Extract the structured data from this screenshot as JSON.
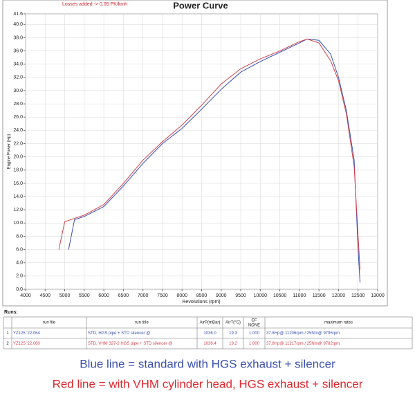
{
  "chart_data": {
    "type": "line",
    "title": "Power Curve",
    "annotation": "Losses added -> 0.05 PK/kmh",
    "xlabel": "Revolutions (rpm)",
    "ylabel": "Engine Power (Hp)",
    "xlim": [
      4000,
      13000
    ],
    "ylim": [
      0,
      41.6
    ],
    "xticks": [
      4000,
      4500,
      5000,
      5500,
      6000,
      6500,
      7000,
      7500,
      8000,
      8500,
      9000,
      9500,
      10000,
      10500,
      11000,
      11500,
      12000,
      12500,
      13000
    ],
    "yticks": [
      {
        "value": 0,
        "label": "0.0"
      },
      {
        "value": 2,
        "label": "2.0"
      },
      {
        "value": 4,
        "label": "4.0"
      },
      {
        "value": 6,
        "label": "6.0"
      },
      {
        "value": 8,
        "label": "8.0"
      },
      {
        "value": 10,
        "label": "10.0"
      },
      {
        "value": 12,
        "label": "12.0"
      },
      {
        "value": 14,
        "label": "14.0"
      },
      {
        "value": 16,
        "label": "16.0"
      },
      {
        "value": 18,
        "label": "18.0"
      },
      {
        "value": 20,
        "label": "20.0"
      },
      {
        "value": 22,
        "label": "22.0"
      },
      {
        "value": 24,
        "label": "24.0"
      },
      {
        "value": 26,
        "label": "26.0"
      },
      {
        "value": 28,
        "label": "28.0"
      },
      {
        "value": 30,
        "label": "30.0"
      },
      {
        "value": 32,
        "label": "32.0"
      },
      {
        "value": 34,
        "label": "34.0"
      },
      {
        "value": 36,
        "label": "36.0"
      },
      {
        "value": 38,
        "label": "38.0"
      },
      {
        "value": 40,
        "label": "40.0"
      },
      41.6
    ],
    "grid": true,
    "series": [
      {
        "color": "#3a4fb0",
        "x": [
          5100,
          5250,
          5500,
          6000,
          6500,
          7000,
          7500,
          8000,
          8500,
          9000,
          9500,
          10000,
          10500,
          11000,
          11200,
          11500,
          11800,
          12000,
          12200,
          12400,
          12500,
          12550
        ],
        "values": [
          6.0,
          10.5,
          11.0,
          12.5,
          15.6,
          19.0,
          22.0,
          24.3,
          27.2,
          30.2,
          32.8,
          34.4,
          35.8,
          37.2,
          37.8,
          37.6,
          35.5,
          32.0,
          27.0,
          19.5,
          6.0,
          1.0
        ]
      },
      {
        "color": "#d0404a",
        "x": [
          4850,
          5000,
          5500,
          6000,
          6500,
          7000,
          7500,
          8000,
          8500,
          9000,
          9500,
          10000,
          10500,
          11000,
          11200,
          11500,
          11800,
          12000,
          12200,
          12400,
          12500,
          12550
        ],
        "values": [
          6.0,
          10.2,
          11.2,
          12.8,
          16.0,
          19.5,
          22.3,
          24.8,
          27.8,
          31.0,
          33.3,
          34.8,
          36.0,
          37.4,
          37.8,
          37.2,
          34.5,
          31.5,
          26.5,
          18.5,
          8.0,
          3.0
        ]
      }
    ]
  },
  "runs": {
    "title": "Runs:",
    "header": [
      "run file",
      "run title",
      "AirP(mBar)",
      "AirT(°C)",
      [
        "CF",
        "NONE"
      ],
      "maximum rates"
    ],
    "rows": [
      {
        "color": "#3a4fb0",
        "cells": [
          "1",
          "YZ125 '22.064",
          "STD, HGS pipe + STD silencer  @",
          "1036.0",
          "19.3",
          "1.000",
          "37.8Hp@ 11206rpm / 25Nm@ 9795rpm"
        ]
      },
      {
        "color": "#d0404a",
        "cells": [
          "2",
          "YZ125 '22.060",
          "STD, VHM 327-2 HGS pipe + STD silencer  @",
          "1036.4",
          "19.2",
          "1.000",
          "37.8Hp@ 11217rpm / 25Nm@ 9782rpm"
        ]
      }
    ]
  },
  "captions": [
    {
      "text": "Blue line = standard with HGS exhaust + silencer",
      "color": "#3a4fb0"
    },
    {
      "text": "Red line = with VHM cylinder head, HGS exhaust + silencer",
      "color": "#e0262c"
    }
  ]
}
